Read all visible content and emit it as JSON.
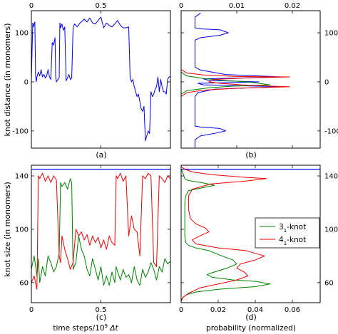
{
  "labels": {
    "ylabel_top": "knot distance (in monomers)",
    "ylabel_bottom": "knot size (in monomers)",
    "xlabel_left": "time steps/10",
    "xlabel_left_exp": "9",
    "xlabel_left_unit": " Δt",
    "xlabel_right": "probability (normalized)",
    "panel_a": "(a)",
    "panel_b": "(b)",
    "panel_c": "(c)",
    "panel_d": "(d)",
    "legend_31": "3",
    "legend_31_sub": "1",
    "legend_31_suffix": "-knot",
    "legend_41": "4",
    "legend_41_sub": "1",
    "legend_41_suffix": "-knot"
  },
  "colors": {
    "blue": "#0000ee",
    "green": "#008000",
    "red": "#ee0000"
  },
  "chart_data": [
    {
      "panel": "a",
      "type": "line",
      "xlim": [
        0,
        1
      ],
      "ylim": [
        -135,
        145
      ],
      "xticks": [
        0,
        0.5
      ],
      "xtick_position": "top",
      "yticks": [
        -100,
        0,
        100
      ],
      "series": [
        {
          "color": "blue",
          "x": [
            0,
            0.01,
            0.015,
            0.02,
            0.025,
            0.03,
            0.035,
            0.04,
            0.045,
            0.05,
            0.06,
            0.07,
            0.08,
            0.09,
            0.1,
            0.11,
            0.12,
            0.13,
            0.14,
            0.15,
            0.16,
            0.17,
            0.175,
            0.18,
            0.19,
            0.2,
            0.205,
            0.21,
            0.22,
            0.23,
            0.24,
            0.25,
            0.27,
            0.28,
            0.29,
            0.3,
            0.31,
            0.33,
            0.35,
            0.37,
            0.38,
            0.4,
            0.42,
            0.44,
            0.46,
            0.48,
            0.5,
            0.52,
            0.54,
            0.56,
            0.58,
            0.6,
            0.62,
            0.64,
            0.66,
            0.68,
            0.7,
            0.71,
            0.72,
            0.73,
            0.74,
            0.75,
            0.76,
            0.77,
            0.78,
            0.79,
            0.8,
            0.81,
            0.82,
            0.83,
            0.84,
            0.85,
            0.86,
            0.87,
            0.88,
            0.89,
            0.9,
            0.91,
            0.92,
            0.93,
            0.94,
            0.95,
            0.96,
            0.97,
            0.98,
            0.99,
            1.0
          ],
          "y": [
            5,
            120,
            112,
            118,
            122,
            15,
            0,
            10,
            15,
            20,
            12,
            25,
            10,
            15,
            8,
            12,
            25,
            10,
            5,
            80,
            75,
            90,
            10,
            0,
            5,
            8,
            120,
            110,
            118,
            105,
            112,
            2,
            15,
            5,
            8,
            110,
            118,
            112,
            120,
            125,
            128,
            122,
            130,
            120,
            118,
            125,
            132,
            110,
            120,
            115,
            112,
            118,
            125,
            115,
            110,
            110,
            112,
            10,
            0,
            5,
            -10,
            -20,
            -30,
            -25,
            -40,
            -55,
            -60,
            -50,
            -120,
            -110,
            -100,
            -105,
            -20,
            -30,
            -25,
            -15,
            -10,
            10,
            -20,
            5,
            -10,
            -20,
            -20,
            -25,
            5,
            10,
            10
          ]
        }
      ]
    },
    {
      "panel": "b",
      "type": "line",
      "xlim": [
        0,
        0.025
      ],
      "ylim": [
        -135,
        145
      ],
      "xticks": [
        0,
        0.01,
        0.02
      ],
      "xtick_position": "top",
      "yticks": [
        -100,
        0,
        100
      ],
      "series": [
        {
          "color": "blue",
          "x": [
            0.0035,
            0.0025,
            0.0025,
            0.0025,
            0.0025,
            0.0025,
            0.0035,
            0.007,
            0.0085,
            0.007,
            0.0035,
            0.0025,
            0.0025,
            0.0025,
            0.0025,
            0.0025,
            0.0025,
            0.0025,
            0.0035,
            0.008,
            0.018,
            0.004,
            0.005,
            0.014,
            0.003,
            0.004,
            0.018,
            0.006,
            0.003,
            0.0025,
            0.0025,
            0.0025,
            0.0025,
            0.0025,
            0.0025,
            0.0025,
            0.0035,
            0.007,
            0.008,
            0.006,
            0.0035,
            0.0025,
            0.0025,
            0.0025
          ],
          "y": [
            140,
            132,
            124,
            118,
            112,
            110,
            108,
            106,
            100,
            95,
            90,
            85,
            78,
            70,
            60,
            50,
            40,
            30,
            24,
            15,
            10,
            6,
            3,
            0,
            -3,
            -6,
            -10,
            -15,
            -22,
            -30,
            -40,
            -50,
            -60,
            -70,
            -80,
            -90,
            -92,
            -95,
            -100,
            -105,
            -110,
            -118,
            -125,
            -135
          ]
        },
        {
          "color": "green",
          "x": [
            0.0,
            0.001,
            0.004,
            0.0075,
            0.012,
            0.016,
            0.009,
            0.005,
            0.001,
            0.0
          ],
          "y": [
            20,
            12,
            7,
            3,
            0,
            -6,
            -9,
            -12,
            -18,
            -25
          ]
        },
        {
          "color": "red",
          "x": [
            0.0,
            0.001,
            0.004,
            0.01,
            0.0195,
            0.012,
            0.006,
            0.005,
            0.007,
            0.012,
            0.0195,
            0.01,
            0.004,
            0.001,
            0.0
          ],
          "y": [
            25,
            18,
            14,
            11,
            10,
            8,
            5,
            0,
            -3,
            -7,
            -10,
            -13,
            -17,
            -22,
            -30
          ]
        }
      ]
    },
    {
      "panel": "c",
      "type": "line",
      "xlim": [
        0,
        1
      ],
      "ylim": [
        45,
        148
      ],
      "xticks": [
        0,
        0.5
      ],
      "xtick_position": "bottom",
      "yticks": [
        60,
        100,
        140
      ],
      "hline": 145,
      "series": [
        {
          "color": "green",
          "x": [
            0,
            0.02,
            0.04,
            0.05,
            0.06,
            0.08,
            0.1,
            0.12,
            0.14,
            0.16,
            0.18,
            0.2,
            0.21,
            0.22,
            0.24,
            0.26,
            0.28,
            0.29,
            0.3,
            0.32,
            0.34,
            0.36,
            0.38,
            0.4,
            0.42,
            0.44,
            0.46,
            0.48,
            0.5,
            0.52,
            0.54,
            0.56,
            0.58,
            0.6,
            0.61,
            0.62,
            0.64,
            0.66,
            0.68,
            0.7,
            0.72,
            0.74,
            0.76,
            0.78,
            0.8,
            0.82,
            0.84,
            0.86,
            0.88,
            0.9,
            0.92,
            0.94,
            0.96,
            0.98,
            1.0
          ],
          "y": [
            70,
            80,
            65,
            78,
            60,
            72,
            65,
            80,
            75,
            68,
            72,
            82,
            135,
            132,
            135,
            130,
            138,
            135,
            70,
            75,
            95,
            85,
            80,
            70,
            65,
            78,
            70,
            62,
            72,
            58,
            65,
            58,
            68,
            60,
            72,
            68,
            62,
            70,
            64,
            66,
            60,
            72,
            62,
            58,
            70,
            64,
            68,
            75,
            70,
            62,
            72,
            68,
            78,
            74,
            76
          ]
        },
        {
          "color": "red",
          "x": [
            0,
            0.02,
            0.04,
            0.05,
            0.06,
            0.08,
            0.1,
            0.12,
            0.14,
            0.16,
            0.18,
            0.2,
            0.21,
            0.22,
            0.24,
            0.26,
            0.28,
            0.3,
            0.32,
            0.34,
            0.36,
            0.38,
            0.4,
            0.42,
            0.44,
            0.46,
            0.48,
            0.5,
            0.52,
            0.54,
            0.56,
            0.58,
            0.6,
            0.61,
            0.62,
            0.64,
            0.66,
            0.68,
            0.7,
            0.72,
            0.74,
            0.76,
            0.78,
            0.8,
            0.82,
            0.84,
            0.86,
            0.88,
            0.9,
            0.92,
            0.94,
            0.96,
            0.98,
            1.0
          ],
          "y": [
            60,
            65,
            55,
            140,
            138,
            142,
            136,
            140,
            135,
            140,
            137,
            80,
            75,
            95,
            85,
            78,
            70,
            75,
            100,
            95,
            98,
            92,
            96,
            88,
            95,
            90,
            94,
            86,
            92,
            85,
            95,
            90,
            88,
            140,
            138,
            142,
            136,
            140,
            95,
            110,
            100,
            98,
            80,
            140,
            138,
            142,
            140,
            75,
            72,
            140,
            138,
            135,
            140,
            138
          ]
        }
      ]
    },
    {
      "panel": "d",
      "type": "line",
      "xlim": [
        0,
        0.075
      ],
      "ylim": [
        45,
        148
      ],
      "xticks": [
        0,
        0.02,
        0.04,
        0.06
      ],
      "xtick_position": "bottom",
      "yticks": [
        60,
        100,
        140
      ],
      "hline": 145,
      "legend": "center-right",
      "series": [
        {
          "name_key": "legend_31",
          "color": "green",
          "x": [
            0.0,
            0.001,
            0.0015,
            0.002,
            0.003,
            0.006,
            0.011,
            0.018,
            0.011,
            0.004,
            0.0025,
            0.002,
            0.002,
            0.002,
            0.002,
            0.0025,
            0.004,
            0.008,
            0.015,
            0.022,
            0.028,
            0.03,
            0.025,
            0.018,
            0.014,
            0.017,
            0.028,
            0.04,
            0.048,
            0.04,
            0.02,
            0.008,
            0.003,
            0.001,
            0.0
          ],
          "y": [
            145,
            142,
            140,
            138,
            137,
            136,
            135,
            133,
            131,
            129,
            125,
            120,
            110,
            100,
            95,
            90,
            88,
            86,
            84,
            80,
            77,
            74,
            71,
            68,
            66,
            64,
            62,
            61,
            59,
            57,
            55,
            53,
            51,
            49,
            47
          ]
        },
        {
          "name_key": "legend_41",
          "color": "red",
          "x": [
            0.0,
            0.002,
            0.006,
            0.016,
            0.034,
            0.046,
            0.034,
            0.016,
            0.006,
            0.004,
            0.004,
            0.005,
            0.008,
            0.013,
            0.015,
            0.01,
            0.006,
            0.008,
            0.02,
            0.035,
            0.045,
            0.04,
            0.032,
            0.03,
            0.034,
            0.036,
            0.03,
            0.02,
            0.01,
            0.004,
            0.001,
            0.0
          ],
          "y": [
            147,
            145,
            143,
            141,
            139,
            138,
            136,
            134,
            130,
            125,
            115,
            108,
            104,
            101,
            98,
            95,
            92,
            89,
            86,
            84,
            80,
            77,
            74,
            71,
            68,
            65,
            62,
            59,
            56,
            52,
            49,
            46
          ]
        }
      ]
    }
  ]
}
